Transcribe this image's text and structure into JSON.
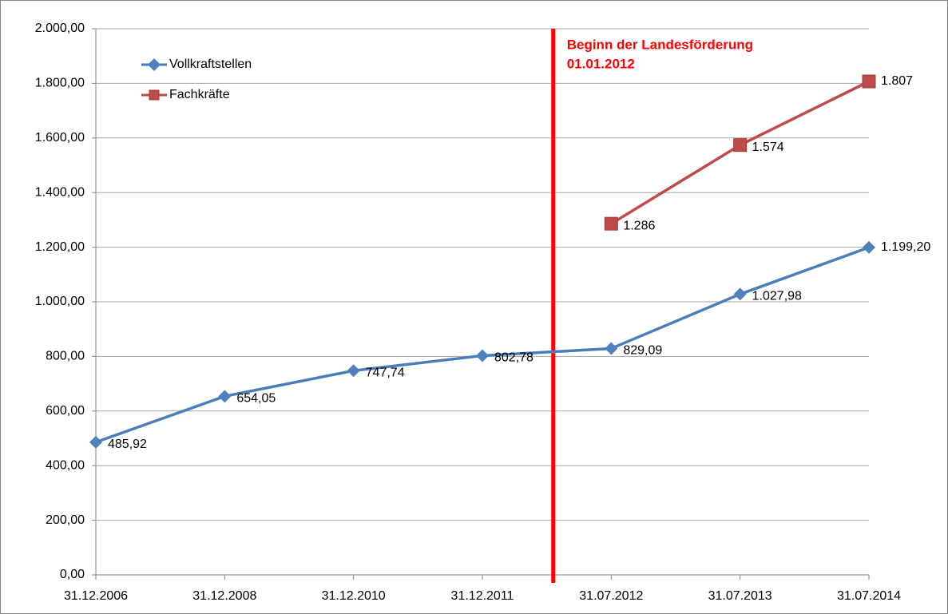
{
  "chart_data": {
    "type": "line",
    "categories": [
      "31.12.2006",
      "31.12.2008",
      "31.12.2010",
      "31.12.2011",
      "31.07.2012",
      "31.07.2013",
      "31.07.2014"
    ],
    "series": [
      {
        "name": "Vollkraftstellen",
        "color": "#4a7ebb",
        "marker": "diamond",
        "values": [
          485.92,
          654.05,
          747.74,
          802.78,
          829.09,
          1027.98,
          1199.2
        ],
        "value_labels": [
          "485,92",
          "654,05",
          "747,74",
          "802,78",
          "829,09",
          "1.027,98",
          "1.199,20"
        ]
      },
      {
        "name": "Fachkräfte",
        "color": "#be4b48",
        "marker": "square",
        "values": [
          null,
          null,
          null,
          null,
          1286,
          1574,
          1807
        ],
        "value_labels": [
          null,
          null,
          null,
          null,
          "1.286",
          "1.574",
          "1.807"
        ]
      }
    ],
    "ylim": [
      0,
      2000
    ],
    "yticks": [
      {
        "value": 0,
        "label": "0,00"
      },
      {
        "value": 200,
        "label": "200,00"
      },
      {
        "value": 400,
        "label": "400,00"
      },
      {
        "value": 600,
        "label": "600,00"
      },
      {
        "value": 800,
        "label": "800,00"
      },
      {
        "value": 1000,
        "label": "1.000,00"
      },
      {
        "value": 1200,
        "label": "1.200,00"
      },
      {
        "value": 1400,
        "label": "1.400,00"
      },
      {
        "value": 1600,
        "label": "1.600,00"
      },
      {
        "value": 1800,
        "label": "1.800,00"
      },
      {
        "value": 2000,
        "label": "2.000,00"
      }
    ],
    "grid": true,
    "legend": "top-left",
    "annotation": {
      "lines": [
        "Beginn der Landesförderung",
        "01.01.2012"
      ],
      "color": "#ff0000"
    }
  }
}
